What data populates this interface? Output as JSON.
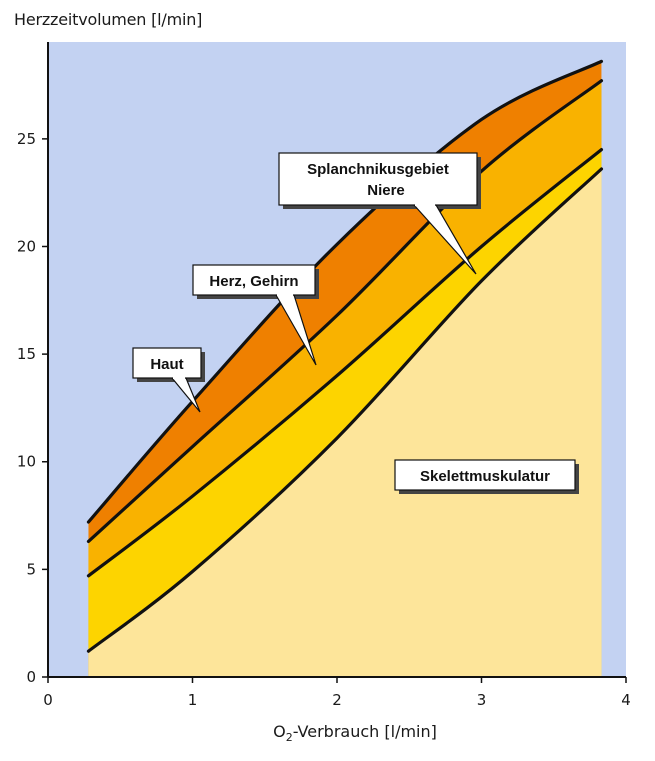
{
  "chart_data": {
    "type": "area",
    "ylabel": "Herzzeitvolumen [l/min]",
    "xlabel_prefix": "O",
    "xlabel_sub": "2",
    "xlabel_suffix": "-Verbrauch [l/min]",
    "xlim": [
      0,
      4
    ],
    "ylim": [
      0,
      29.5
    ],
    "xticks": [
      "0",
      "1",
      "2",
      "3",
      "4"
    ],
    "yticks": [
      "0",
      "5",
      "10",
      "15",
      "20",
      "25"
    ],
    "grid": false,
    "x": [
      0.28,
      1.0,
      2.0,
      3.0,
      3.83
    ],
    "boundaries": [
      {
        "name": "Skelettmuskulatur",
        "y": [
          1.2,
          4.9,
          11.1,
          18.4,
          23.6
        ]
      },
      {
        "name": "Splanchnikusgebiet Niere",
        "y": [
          4.7,
          8.4,
          14.0,
          20.0,
          24.5
        ]
      },
      {
        "name": "Herz, Gehirn",
        "y": [
          6.3,
          10.7,
          16.8,
          23.5,
          27.7
        ]
      },
      {
        "name": "Haut",
        "y": [
          7.2,
          12.8,
          20.1,
          25.9,
          28.6
        ]
      }
    ],
    "annotations": {
      "haut": "Haut",
      "herz": "Herz, Gehirn",
      "splanch_1": "Splanchnikusgebiet",
      "splanch_2": "Niere",
      "skelett": "Skelettmuskulatur"
    },
    "colors": {
      "background": "#c3d2f2",
      "skelett": "#fde59a",
      "splanch": "#fdd400",
      "herz": "#f9b200",
      "haut": "#ef8000",
      "line": "#111111"
    }
  }
}
